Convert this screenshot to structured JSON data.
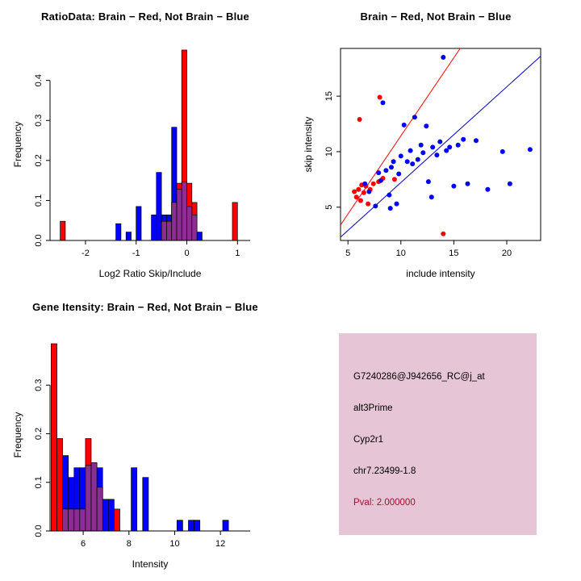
{
  "chart_data": [
    {
      "type": "histogram",
      "title": "RatioData: Brain − Red, Not Brain − Blue",
      "xlabel": "Log2 Ratio Skip/Include",
      "ylabel": "Frequency",
      "xlim": [
        -2.7,
        1.25
      ],
      "ylim": [
        0,
        0.48
      ],
      "xticks": [
        "-2",
        "-1",
        "0",
        "1"
      ],
      "yticks": [
        "0.0",
        "0.1",
        "0.2",
        "0.3",
        "0.4"
      ],
      "bin_width": 0.1,
      "overlap_color": "#8c2d91",
      "series": [
        {
          "name": "Brain",
          "color": "#ff0000",
          "bins": [
            [
              -2.5,
              0.048
            ],
            [
              -0.5,
              0.048
            ],
            [
              -0.4,
              0.048
            ],
            [
              -0.3,
              0.095
            ],
            [
              -0.2,
              0.143
            ],
            [
              -0.1,
              0.476
            ],
            [
              0.0,
              0.143
            ],
            [
              0.1,
              0.095
            ],
            [
              0.9,
              0.095
            ]
          ]
        },
        {
          "name": "Not Brain",
          "color": "#0000ff",
          "bins": [
            [
              -1.4,
              0.042
            ],
            [
              -1.2,
              0.021
            ],
            [
              -1.0,
              0.085
            ],
            [
              -0.7,
              0.064
            ],
            [
              -0.6,
              0.17
            ],
            [
              -0.5,
              0.064
            ],
            [
              -0.4,
              0.064
            ],
            [
              -0.3,
              0.283
            ],
            [
              -0.2,
              0.128
            ],
            [
              -0.1,
              0.146
            ],
            [
              0.0,
              0.085
            ],
            [
              0.1,
              0.064
            ],
            [
              0.2,
              0.021
            ]
          ]
        }
      ]
    },
    {
      "type": "scatter",
      "title": "Brain − Red, Not Brain − Blue",
      "xlabel": "include intensity",
      "ylabel": "skip intensity",
      "xlim": [
        4.3,
        23.2
      ],
      "ylim": [
        2,
        19.3
      ],
      "xticks": [
        "5",
        "10",
        "15",
        "20"
      ],
      "yticks": [
        "5",
        "10",
        "15"
      ],
      "series": [
        {
          "name": "Brain",
          "color": "#ff0000",
          "points": [
            [
              5.6,
              6.4
            ],
            [
              5.8,
              5.9
            ],
            [
              6.0,
              6.6
            ],
            [
              6.2,
              5.6
            ],
            [
              6.3,
              7.0
            ],
            [
              6.5,
              6.3
            ],
            [
              6.7,
              6.9
            ],
            [
              6.9,
              5.3
            ],
            [
              7.1,
              6.6
            ],
            [
              7.4,
              7.1
            ],
            [
              7.9,
              7.3
            ],
            [
              8.3,
              7.6
            ],
            [
              9.4,
              7.5
            ],
            [
              6.1,
              12.9
            ],
            [
              8.0,
              14.9
            ],
            [
              14.0,
              2.6
            ]
          ]
        },
        {
          "name": "Not Brain",
          "color": "#0000ff",
          "points": [
            [
              6.6,
              7.1
            ],
            [
              7.0,
              6.4
            ],
            [
              7.6,
              5.1
            ],
            [
              7.9,
              8.1
            ],
            [
              8.1,
              7.4
            ],
            [
              8.3,
              14.4
            ],
            [
              8.6,
              8.3
            ],
            [
              8.9,
              6.1
            ],
            [
              9.0,
              4.9
            ],
            [
              9.1,
              8.6
            ],
            [
              9.3,
              9.1
            ],
            [
              9.6,
              5.3
            ],
            [
              9.8,
              8.0
            ],
            [
              10.0,
              9.6
            ],
            [
              10.3,
              12.4
            ],
            [
              10.6,
              9.1
            ],
            [
              10.9,
              10.1
            ],
            [
              11.1,
              8.9
            ],
            [
              11.3,
              13.1
            ],
            [
              11.6,
              9.3
            ],
            [
              11.9,
              10.6
            ],
            [
              12.1,
              9.9
            ],
            [
              12.4,
              12.3
            ],
            [
              12.6,
              7.3
            ],
            [
              12.9,
              5.9
            ],
            [
              13.0,
              10.4
            ],
            [
              13.4,
              9.7
            ],
            [
              13.7,
              10.9
            ],
            [
              14.0,
              18.5
            ],
            [
              14.3,
              10.1
            ],
            [
              14.6,
              10.4
            ],
            [
              15.0,
              6.9
            ],
            [
              15.4,
              10.6
            ],
            [
              15.9,
              11.1
            ],
            [
              16.3,
              7.1
            ],
            [
              17.1,
              11.0
            ],
            [
              18.2,
              6.6
            ],
            [
              19.6,
              10.0
            ],
            [
              20.3,
              7.1
            ],
            [
              22.2,
              10.2
            ]
          ]
        }
      ],
      "lines": [
        {
          "name": "brain-fit-line",
          "color": "#ff0000",
          "x1": 4.3,
          "y1": 3.4,
          "x2": 15.6,
          "y2": 19.3
        },
        {
          "name": "notbrain-fit-line",
          "color": "#0000b8",
          "x1": 4.3,
          "y1": 2.3,
          "x2": 23.2,
          "y2": 18.6
        }
      ]
    },
    {
      "type": "histogram",
      "title": "Gene Itensity: Brain − Red, Not Brain − Blue",
      "xlabel": "Intensity",
      "ylabel": "Frequency",
      "xlim": [
        4.55,
        13.3
      ],
      "ylim": [
        0,
        0.395
      ],
      "xticks": [
        "6",
        "8",
        "10",
        "12"
      ],
      "yticks": [
        "0.0",
        "0.1",
        "0.2",
        "0.3"
      ],
      "bin_width": 0.25,
      "overlap_color": "#8c2d91",
      "series": [
        {
          "name": "Brain",
          "color": "#ff0000",
          "bins": [
            [
              4.6,
              0.385
            ],
            [
              4.85,
              0.19
            ],
            [
              5.1,
              0.045
            ],
            [
              5.35,
              0.045
            ],
            [
              5.6,
              0.045
            ],
            [
              5.85,
              0.045
            ],
            [
              6.1,
              0.19
            ],
            [
              6.35,
              0.14
            ],
            [
              6.6,
              0.09
            ],
            [
              7.35,
              0.045
            ]
          ]
        },
        {
          "name": "Not Brain",
          "color": "#0000ff",
          "bins": [
            [
              5.1,
              0.155
            ],
            [
              5.35,
              0.11
            ],
            [
              5.6,
              0.13
            ],
            [
              5.85,
              0.13
            ],
            [
              6.1,
              0.135
            ],
            [
              6.35,
              0.14
            ],
            [
              6.6,
              0.13
            ],
            [
              6.85,
              0.065
            ],
            [
              7.1,
              0.065
            ],
            [
              8.1,
              0.13
            ],
            [
              8.6,
              0.11
            ],
            [
              10.1,
              0.022
            ],
            [
              10.6,
              0.022
            ],
            [
              10.85,
              0.022
            ],
            [
              12.1,
              0.022
            ]
          ]
        }
      ]
    }
  ],
  "info": {
    "probe_id": "G7240286@J942656_RC@j_at",
    "splice_type": "alt3Prime",
    "gene": "Cyp2r1",
    "location": "chr7.23499-1.8",
    "pval": "Pval: 2.000000",
    "bg_color": "#e6c5d6",
    "pval_color": "#a01030"
  }
}
